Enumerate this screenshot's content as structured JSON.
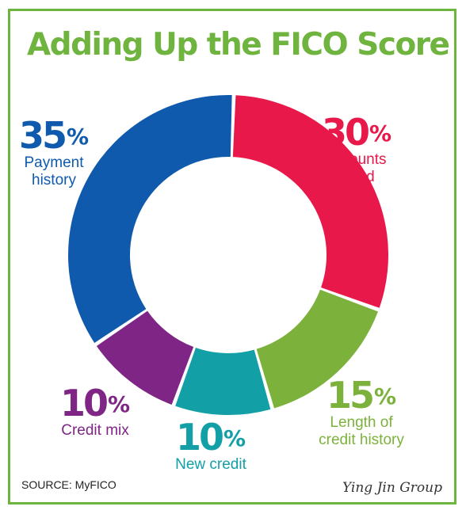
{
  "chart_data": {
    "type": "pie",
    "title": "Adding Up the FICO Score",
    "source": "SOURCE: MyFICO",
    "unit": "%",
    "slices": [
      {
        "name": "Amounts owed",
        "label_lines": [
          "Amounts",
          "owed"
        ],
        "value": 30,
        "color": "#e8184a"
      },
      {
        "name": "Length of credit history",
        "label_lines": [
          "Length of",
          "credit history"
        ],
        "value": 15,
        "color": "#7cb23c"
      },
      {
        "name": "New credit",
        "label_lines": [
          "New credit"
        ],
        "value": 10,
        "color": "#139fa6"
      },
      {
        "name": "Credit mix",
        "label_lines": [
          "Credit mix"
        ],
        "value": 10,
        "color": "#7e2585"
      },
      {
        "name": "Payment history",
        "label_lines": [
          "Payment",
          "history"
        ],
        "value": 35,
        "color": "#0f5aad"
      }
    ]
  },
  "watermark": "Ying Jin Group"
}
